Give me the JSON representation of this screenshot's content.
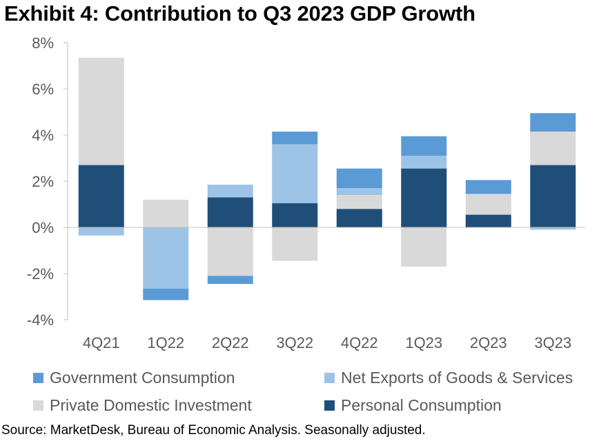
{
  "title": "Exhibit 4: Contribution to Q3 2023 GDP Growth",
  "source": "Source: MarketDesk, Bureau of Economic Analysis. Seasonally adjusted.",
  "chart_data": {
    "type": "bar",
    "stacked": true,
    "categories": [
      "4Q21",
      "1Q22",
      "2Q22",
      "3Q22",
      "4Q22",
      "1Q23",
      "2Q23",
      "3Q23"
    ],
    "ylim": [
      -4,
      8
    ],
    "yticks": [
      -4,
      -2,
      0,
      2,
      4,
      6,
      8
    ],
    "ytick_labels": [
      "-4%",
      "-2%",
      "0%",
      "2%",
      "4%",
      "6%",
      "8%"
    ],
    "grid": false,
    "legend_position": "bottom",
    "series": [
      {
        "name": "Personal Consumption",
        "color": "#1f4e79",
        "values": [
          2.7,
          0.0,
          1.3,
          1.05,
          0.8,
          2.55,
          0.55,
          2.7
        ]
      },
      {
        "name": "Private Domestic Investment",
        "color": "#d9d9d9",
        "values": [
          4.65,
          1.2,
          -2.1,
          -1.45,
          0.6,
          -1.7,
          0.9,
          1.45
        ]
      },
      {
        "name": "Net Exports of Goods & Services",
        "color": "#9dc3e6",
        "values": [
          -0.35,
          -2.65,
          0.55,
          2.55,
          0.3,
          0.55,
          0.0,
          -0.1
        ]
      },
      {
        "name": "Government Consumption",
        "color": "#5b9bd5",
        "values": [
          0.0,
          -0.5,
          -0.35,
          0.55,
          0.85,
          0.85,
          0.6,
          0.8
        ]
      }
    ]
  }
}
